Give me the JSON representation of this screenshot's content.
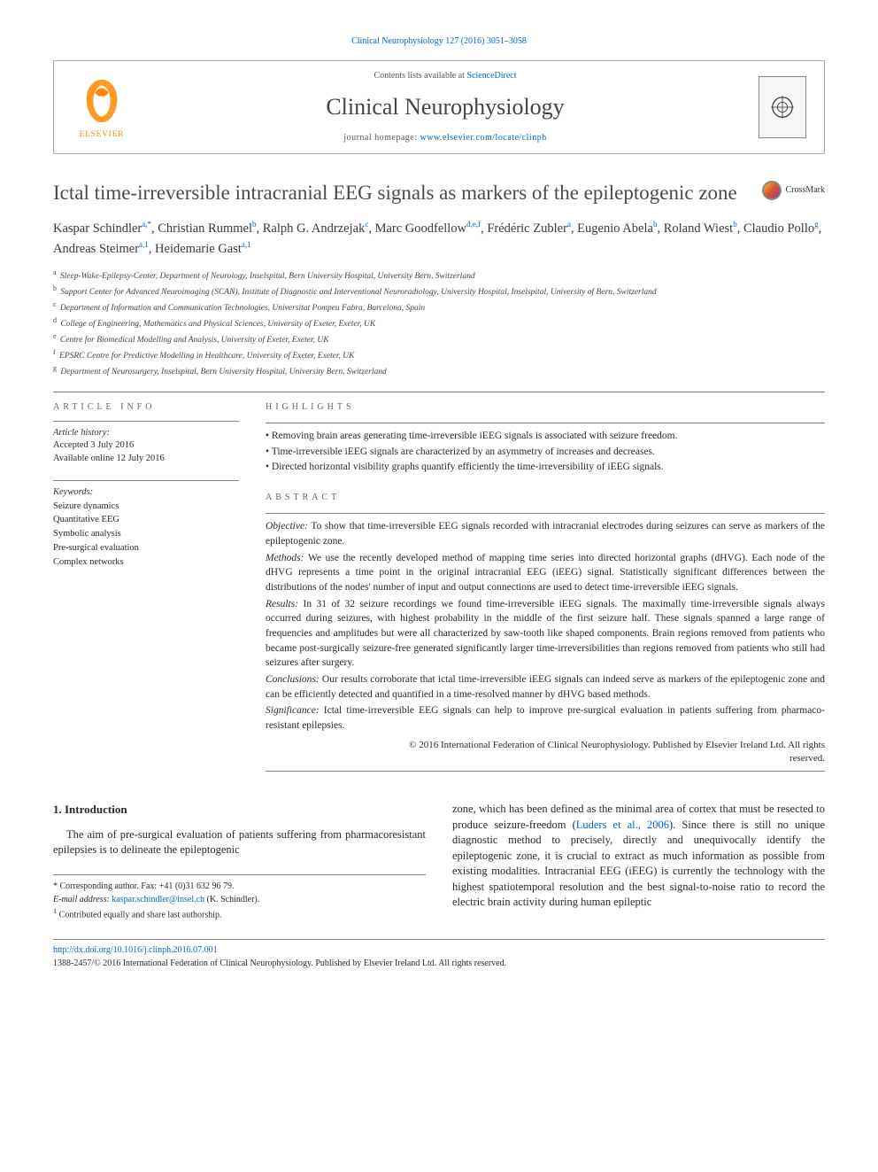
{
  "journalRef": "Clinical Neurophysiology 127 (2016) 3051–3058",
  "header": {
    "contentsPrefix": "Contents lists available at ",
    "contentsLink": "ScienceDirect",
    "journalName": "Clinical Neurophysiology",
    "homepagePrefix": "journal homepage: ",
    "homepageUrl": "www.elsevier.com/locate/clinph",
    "elsevierLabel": "ELSEVIER"
  },
  "title": "Ictal time-irreversible intracranial EEG signals as markers of the epileptogenic zone",
  "crossmarkLabel": "CrossMark",
  "authorsHtml": "Kaspar Schindler<sup>a,*</sup>, Christian Rummel<sup>b</sup>, Ralph G. Andrzejak<sup>c</sup>, Marc Goodfellow<sup>d,e,f</sup>, Frédéric Zubler<sup>a</sup>, Eugenio Abela<sup>b</sup>, Roland Wiest<sup>b</sup>, Claudio Pollo<sup>g</sup>, Andreas Steimer<sup>a,1</sup>, Heidemarie Gast<sup>a,1</sup>",
  "affiliations": [
    {
      "key": "a",
      "text": "Sleep-Wake-Epilepsy-Center, Department of Neurology, Inselspital, Bern University Hospital, University Bern, Switzerland"
    },
    {
      "key": "b",
      "text": "Support Center for Advanced Neuroimaging (SCAN), Institute of Diagnostic and Interventional Neuroradiology, University Hospital, Inselspital, University of Bern, Switzerland"
    },
    {
      "key": "c",
      "text": "Department of Information and Communication Technologies, Universitat Pompeu Fabra, Barcelona, Spain"
    },
    {
      "key": "d",
      "text": "College of Engineering, Mathematics and Physical Sciences, University of Exeter, Exeter, UK"
    },
    {
      "key": "e",
      "text": "Centre for Biomedical Modelling and Analysis, University of Exeter, Exeter, UK"
    },
    {
      "key": "f",
      "text": "EPSRC Centre for Predictive Modelling in Healthcare, University of Exeter, Exeter, UK"
    },
    {
      "key": "g",
      "text": "Department of Neurosurgery, Inselspital, Bern University Hospital, University Bern, Switzerland"
    }
  ],
  "articleInfo": {
    "heading": "article info",
    "historyLabel": "Article history:",
    "accepted": "Accepted 3 July 2016",
    "online": "Available online 12 July 2016",
    "keywordsLabel": "Keywords:",
    "keywords": [
      "Seizure dynamics",
      "Quantitative EEG",
      "Symbolic analysis",
      "Pre-surgical evaluation",
      "Complex networks"
    ]
  },
  "highlights": {
    "heading": "highlights",
    "items": [
      "Removing brain areas generating time-irreversible iEEG signals is associated with seizure freedom.",
      "Time-irreversible iEEG signals are characterized by an asymmetry of increases and decreases.",
      "Directed horizontal visibility graphs quantify efficiently the time-irreversibility of iEEG signals."
    ]
  },
  "abstract": {
    "heading": "abstract",
    "sections": [
      {
        "label": "Objective:",
        "text": "To show that time-irreversible EEG signals recorded with intracranial electrodes during seizures can serve as markers of the epileptogenic zone."
      },
      {
        "label": "Methods:",
        "text": "We use the recently developed method of mapping time series into directed horizontal graphs (dHVG). Each node of the dHVG represents a time point in the original intracranial EEG (iEEG) signal. Statistically significant differences between the distributions of the nodes' number of input and output connections are used to detect time-irreversible iEEG signals."
      },
      {
        "label": "Results:",
        "text": "In 31 of 32 seizure recordings we found time-irreversible iEEG signals. The maximally time-irreversible signals always occurred during seizures, with highest probability in the middle of the first seizure half. These signals spanned a large range of frequencies and amplitudes but were all characterized by saw-tooth like shaped components. Brain regions removed from patients who became post-surgically seizure-free generated significantly larger time-irreversibilities than regions removed from patients who still had seizures after surgery."
      },
      {
        "label": "Conclusions:",
        "text": "Our results corroborate that ictal time-irreversible iEEG signals can indeed serve as markers of the epileptogenic zone and can be efficiently detected and quantified in a time-resolved manner by dHVG based methods."
      },
      {
        "label": "Significance:",
        "text": "Ictal time-irreversible EEG signals can help to improve pre-surgical evaluation in patients suffering from pharmaco-resistant epilepsies."
      }
    ],
    "copyright1": "© 2016 International Federation of Clinical Neurophysiology. Published by Elsevier Ireland Ltd. All rights",
    "copyright2": "reserved."
  },
  "introduction": {
    "heading": "1. Introduction",
    "col1": "The aim of pre-surgical evaluation of patients suffering from pharmacoresistant epilepsies is to delineate the epileptogenic",
    "col2a": "zone, which has been defined as the minimal area of cortex that must be resected to produce seizure-freedom (",
    "col2link": "Luders et al., 2006",
    "col2b": "). Since there is still no unique diagnostic method to precisely, directly and unequivocally identify the epileptogenic zone, it is crucial to extract as much information as possible from existing modalities. Intracranial EEG (iEEG) is currently the technology with the highest spatiotemporal resolution and the best signal-to-noise ratio to record the electric brain activity during human epileptic"
  },
  "footnotes": {
    "corr": "Corresponding author. Fax: +41 (0)31 632 96 79.",
    "emailLabel": "E-mail address:",
    "email": "kaspar.schindler@insel.ch",
    "emailSuffix": "(K. Schindler).",
    "note1": "Contributed equally and share last authorship."
  },
  "footer": {
    "doi": "http://dx.doi.org/10.1016/j.clinph.2016.07.001",
    "issn": "1388-2457/© 2016 International Federation of Clinical Neurophysiology. Published by Elsevier Ireland Ltd. All rights reserved."
  }
}
